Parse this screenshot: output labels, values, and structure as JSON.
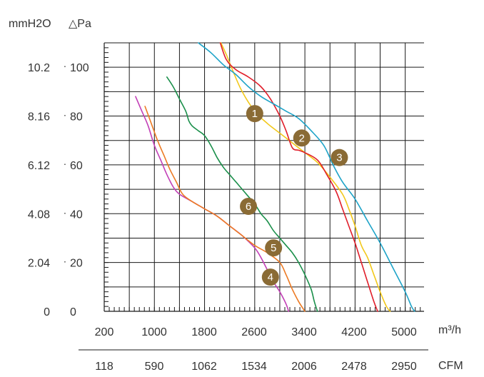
{
  "chart_data": {
    "type": "line",
    "header": {
      "unit_left": "mmH2O",
      "unit_right": "△Pa"
    },
    "x_unit_top": "m³/h",
    "x_unit_bottom": "CFM",
    "x_ticks_top": [
      "200",
      "1000",
      "1800",
      "2600",
      "3400",
      "4200",
      "5000"
    ],
    "x_ticks_bottom": [
      "118",
      "590",
      "1062",
      "1534",
      "2006",
      "2478",
      "2950"
    ],
    "y_ticks_pa": [
      "0",
      "20",
      "40",
      "60",
      "80",
      "100"
    ],
    "y_ticks_mmh2o": [
      "0",
      "2.04",
      "4.08",
      "6.12",
      "8.16",
      "10.2"
    ],
    "xlim": [
      200,
      5300
    ],
    "ylim": [
      0,
      110
    ],
    "grid": true,
    "colors": {
      "grid": "#1a1a1a",
      "text": "#333333",
      "badge": "#8a6b35",
      "badge_text": "#ffffff"
    },
    "series": [
      {
        "label": "1",
        "color": "#f2c81a",
        "label_at": [
          2600,
          81
        ],
        "points": [
          [
            2060,
            110
          ],
          [
            2150,
            105
          ],
          [
            2260,
            98
          ],
          [
            2400,
            90
          ],
          [
            2600,
            82
          ],
          [
            2800,
            77
          ],
          [
            3000,
            73
          ],
          [
            3200,
            69
          ],
          [
            3400,
            65
          ],
          [
            3600,
            61
          ],
          [
            3800,
            55
          ],
          [
            4000,
            48
          ],
          [
            4100,
            42
          ],
          [
            4200,
            35
          ],
          [
            4300,
            27
          ],
          [
            4400,
            22
          ],
          [
            4500,
            15
          ],
          [
            4600,
            8
          ],
          [
            4700,
            2
          ],
          [
            4760,
            0
          ]
        ]
      },
      {
        "label": "2",
        "color": "#e01e2a",
        "label_at": [
          3350,
          71
        ],
        "points": [
          [
            2050,
            110
          ],
          [
            2150,
            103
          ],
          [
            2300,
            99
          ],
          [
            2500,
            96
          ],
          [
            2700,
            92
          ],
          [
            2850,
            87
          ],
          [
            3000,
            80
          ],
          [
            3100,
            74
          ],
          [
            3200,
            67
          ],
          [
            3300,
            66
          ],
          [
            3400,
            65
          ],
          [
            3600,
            62
          ],
          [
            3750,
            56
          ],
          [
            3900,
            49
          ],
          [
            4000,
            42
          ],
          [
            4100,
            35
          ],
          [
            4200,
            28
          ],
          [
            4300,
            20
          ],
          [
            4400,
            12
          ],
          [
            4500,
            4
          ],
          [
            4560,
            0
          ]
        ]
      },
      {
        "label": "3",
        "color": "#1da3c8",
        "label_at": [
          3950,
          63
        ],
        "points": [
          [
            1700,
            110
          ],
          [
            1900,
            106
          ],
          [
            2100,
            101
          ],
          [
            2300,
            97
          ],
          [
            2500,
            92
          ],
          [
            2700,
            88
          ],
          [
            2900,
            85
          ],
          [
            3100,
            82
          ],
          [
            3300,
            79
          ],
          [
            3500,
            74
          ],
          [
            3700,
            68
          ],
          [
            3850,
            60
          ],
          [
            4000,
            53
          ],
          [
            4200,
            46
          ],
          [
            4400,
            37
          ],
          [
            4600,
            28
          ],
          [
            4800,
            18
          ],
          [
            5000,
            8
          ],
          [
            5100,
            2
          ],
          [
            5150,
            0
          ]
        ]
      },
      {
        "label": "4",
        "color": "#c23fb6",
        "label_at": [
          2850,
          14
        ],
        "points": [
          [
            700,
            88
          ],
          [
            800,
            82
          ],
          [
            900,
            76
          ],
          [
            1000,
            68
          ],
          [
            1100,
            62
          ],
          [
            1200,
            56
          ],
          [
            1300,
            51
          ],
          [
            1400,
            48
          ],
          [
            1600,
            45
          ],
          [
            1800,
            42
          ],
          [
            2000,
            39
          ],
          [
            2200,
            35
          ],
          [
            2400,
            31
          ],
          [
            2600,
            26
          ],
          [
            2700,
            22
          ],
          [
            2800,
            17
          ],
          [
            2900,
            12
          ],
          [
            3000,
            8
          ],
          [
            3100,
            3
          ],
          [
            3140,
            0
          ]
        ]
      },
      {
        "label": "5",
        "color": "#ec7a23",
        "label_at": [
          2900,
          26
        ],
        "points": [
          [
            850,
            84
          ],
          [
            950,
            77
          ],
          [
            1050,
            70
          ],
          [
            1150,
            64
          ],
          [
            1250,
            58
          ],
          [
            1350,
            53
          ],
          [
            1450,
            48
          ],
          [
            1600,
            45
          ],
          [
            1800,
            42
          ],
          [
            2000,
            39
          ],
          [
            2200,
            35
          ],
          [
            2400,
            31
          ],
          [
            2600,
            27
          ],
          [
            2800,
            24
          ],
          [
            3000,
            20
          ],
          [
            3100,
            15
          ],
          [
            3200,
            9
          ],
          [
            3300,
            4
          ],
          [
            3400,
            0
          ]
        ]
      },
      {
        "label": "6",
        "color": "#1a8f4a",
        "label_at": [
          2500,
          43
        ],
        "points": [
          [
            1200,
            96
          ],
          [
            1300,
            92
          ],
          [
            1400,
            87
          ],
          [
            1500,
            82
          ],
          [
            1550,
            78
          ],
          [
            1600,
            76
          ],
          [
            1700,
            74
          ],
          [
            1800,
            72
          ],
          [
            1900,
            68
          ],
          [
            2000,
            63
          ],
          [
            2100,
            59
          ],
          [
            2200,
            56
          ],
          [
            2300,
            53
          ],
          [
            2400,
            50
          ],
          [
            2500,
            47
          ],
          [
            2600,
            44
          ],
          [
            2700,
            40
          ],
          [
            2800,
            37
          ],
          [
            2900,
            33
          ],
          [
            3000,
            30
          ],
          [
            3100,
            27
          ],
          [
            3200,
            24
          ],
          [
            3300,
            20
          ],
          [
            3400,
            15
          ],
          [
            3500,
            9
          ],
          [
            3550,
            4
          ],
          [
            3600,
            0
          ]
        ]
      }
    ]
  }
}
